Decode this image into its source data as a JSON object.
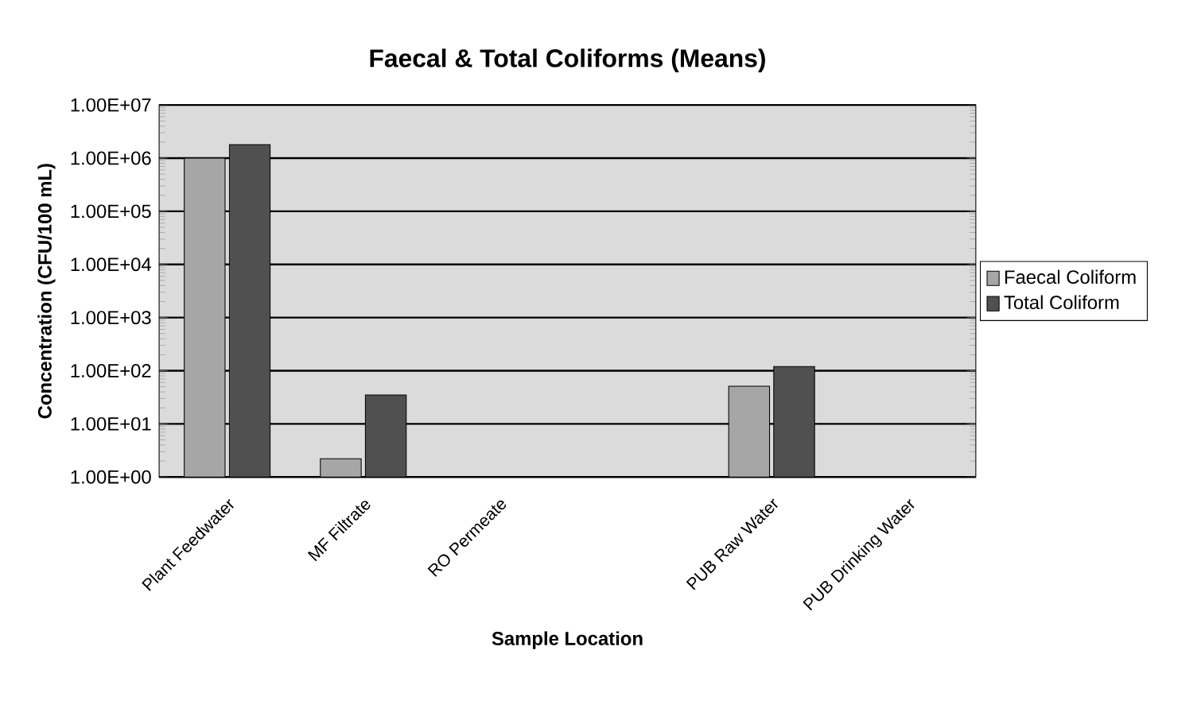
{
  "chart_data": {
    "type": "bar",
    "title": "Faecal & Total Coliforms (Means)",
    "xlabel": "Sample Location",
    "ylabel": "Concentration (CFU/100 mL)",
    "categories": [
      "Plant Feedwater",
      "MF Filtrate",
      "RO Permeate",
      null,
      "PUB Raw Water",
      "PUB Drinking Water"
    ],
    "series": [
      {
        "name": "Faecal Coliform",
        "color": "#a6a6a6",
        "values": [
          1000000,
          2.2,
          null,
          null,
          51,
          null
        ]
      },
      {
        "name": "Total Coliform",
        "color": "#505050",
        "values": [
          1800000,
          35,
          null,
          null,
          120,
          null
        ]
      }
    ],
    "log": "y",
    "ylim": [
      1,
      10000000
    ],
    "yticks": [
      {
        "value": 1,
        "label": "1.00E+00"
      },
      {
        "value": 10,
        "label": "1.00E+01"
      },
      {
        "value": 100,
        "label": "1.00E+02"
      },
      {
        "value": 1000,
        "label": "1.00E+03"
      },
      {
        "value": 10000,
        "label": "1.00E+04"
      },
      {
        "value": 100000,
        "label": "1.00E+05"
      },
      {
        "value": 1000000,
        "label": "1.00E+06"
      },
      {
        "value": 10000000,
        "label": "1.00E+07"
      }
    ],
    "grid": "y",
    "legend": "right"
  }
}
